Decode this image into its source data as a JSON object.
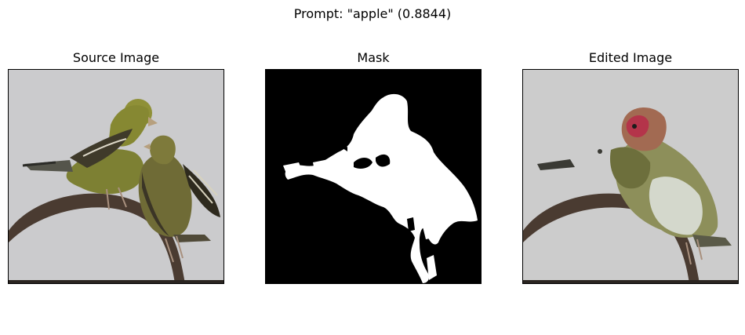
{
  "figure": {
    "suptitle": "Prompt: \"apple\" (0.8844)"
  },
  "panels": [
    {
      "title": "Source Image"
    },
    {
      "title": "Mask"
    },
    {
      "title": "Edited Image"
    }
  ]
}
